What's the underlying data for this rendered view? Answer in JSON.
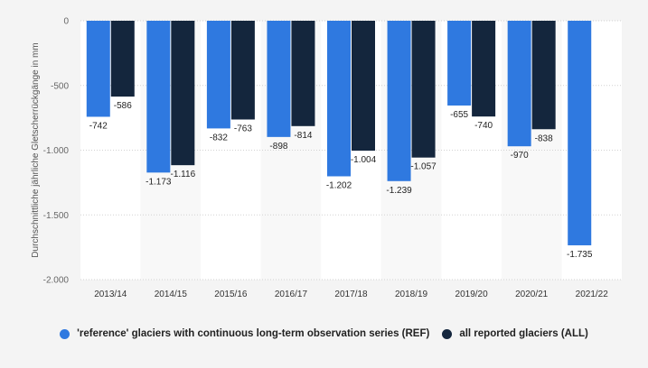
{
  "chart_data": {
    "type": "bar",
    "title": "",
    "xlabel": "",
    "ylabel": "Durchschnittliche jährliche Gletscherrückgänge in mm",
    "ylim": [
      -2000,
      0
    ],
    "yticks": [
      0,
      -500,
      -1000,
      -1500,
      -2000
    ],
    "ytick_labels": [
      "0",
      "-500",
      "-1.000",
      "-1.500",
      "-2.000"
    ],
    "categories": [
      "2013/14",
      "2014/15",
      "2015/16",
      "2016/17",
      "2017/18",
      "2018/19",
      "2019/20",
      "2020/21",
      "2021/22"
    ],
    "series": [
      {
        "name": "'reference' glaciers with continuous long-term observation series (REF)",
        "color": "#2f79e0",
        "values": [
          -742,
          -1173,
          -832,
          -898,
          -1202,
          -1239,
          -655,
          -970,
          -1735
        ],
        "labels": [
          "-742",
          "-1.173",
          "-832",
          "-898",
          "-1.202",
          "-1.239",
          "-655",
          "-970",
          "-1.735"
        ]
      },
      {
        "name": "all reported glaciers (ALL)",
        "color": "#14263d",
        "values": [
          -586,
          -1116,
          -763,
          -814,
          -1004,
          -1057,
          -740,
          -838,
          null
        ],
        "labels": [
          "-586",
          "-1.116",
          "-763",
          "-814",
          "-1.004",
          "-1.057",
          "-740",
          "-838",
          ""
        ]
      }
    ],
    "grid": true,
    "legend_position": "bottom"
  }
}
